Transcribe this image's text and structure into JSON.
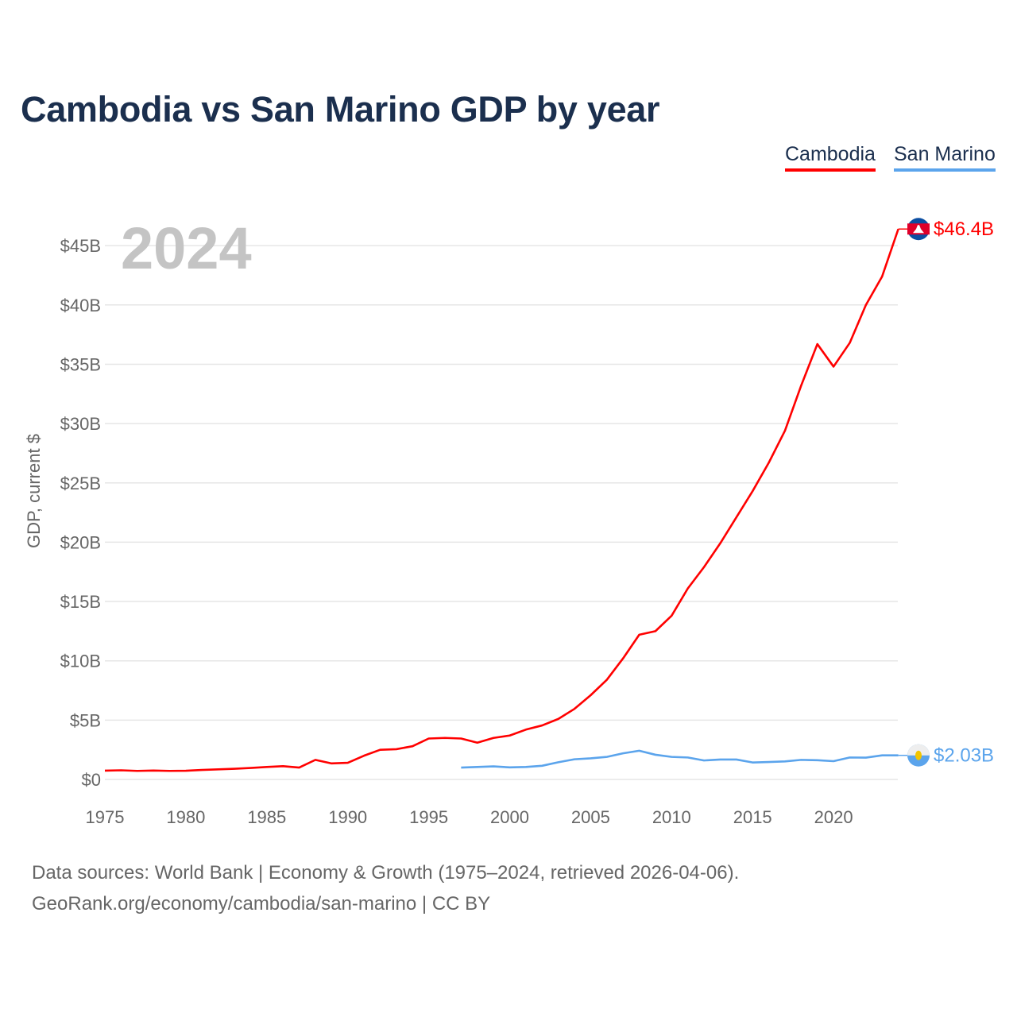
{
  "title": "Cambodia vs San Marino GDP by year",
  "footer": {
    "line1": "Data sources: World Bank | Economy & Growth (1975–2024, retrieved 2026-04-06).",
    "line2": "GeoRank.org/economy/cambodia/san-marino | CC BY"
  },
  "chart_data": {
    "type": "line",
    "title": "Cambodia vs San Marino GDP by year",
    "year_label": "2024",
    "xlabel": "",
    "ylabel": "GDP, current $",
    "xlim": [
      1975,
      2024
    ],
    "ylim": [
      0,
      47
    ],
    "x_ticks": [
      1975,
      1980,
      1985,
      1990,
      1995,
      2000,
      2005,
      2010,
      2015,
      2020
    ],
    "x_tick_labels": [
      "1975",
      "1980",
      "1985",
      "1990",
      "1995",
      "2000",
      "2005",
      "2010",
      "2015",
      "2020"
    ],
    "y_ticks": [
      0,
      5,
      10,
      15,
      20,
      25,
      30,
      35,
      40,
      45
    ],
    "y_tick_labels": [
      "$0",
      "$5B",
      "$10B",
      "$15B",
      "$20B",
      "$25B",
      "$30B",
      "$35B",
      "$40B",
      "$45B"
    ],
    "grid": true,
    "legend_position": "top-right",
    "series": [
      {
        "name": "Cambodia",
        "color": "#ff0000",
        "flag_icon": "cambodia-flag-icon",
        "end_label": "$46.4B",
        "x": [
          1975,
          1976,
          1977,
          1978,
          1979,
          1980,
          1981,
          1982,
          1983,
          1984,
          1985,
          1986,
          1987,
          1988,
          1989,
          1990,
          1991,
          1992,
          1993,
          1994,
          1995,
          1996,
          1997,
          1998,
          1999,
          2000,
          2001,
          2002,
          2003,
          2004,
          2005,
          2006,
          2007,
          2008,
          2009,
          2010,
          2011,
          2012,
          2013,
          2014,
          2015,
          2016,
          2017,
          2018,
          2019,
          2020,
          2021,
          2022,
          2023,
          2024
        ],
        "values": [
          0.74,
          0.77,
          0.72,
          0.75,
          0.72,
          0.73,
          0.8,
          0.85,
          0.9,
          0.97,
          1.05,
          1.12,
          1.0,
          1.65,
          1.35,
          1.4,
          2.0,
          2.5,
          2.55,
          2.8,
          3.45,
          3.5,
          3.45,
          3.1,
          3.5,
          3.7,
          4.2,
          4.55,
          5.1,
          5.95,
          7.1,
          8.4,
          10.2,
          12.2,
          12.5,
          13.8,
          16.1,
          17.9,
          19.9,
          22.1,
          24.3,
          26.7,
          29.4,
          33.2,
          36.7,
          34.8,
          36.8,
          40.0,
          42.4,
          46.4
        ]
      },
      {
        "name": "San Marino",
        "color": "#5ba4ec",
        "flag_icon": "san-marino-flag-icon",
        "end_label": "$2.03B",
        "x": [
          1997,
          1998,
          1999,
          2000,
          2001,
          2002,
          2003,
          2004,
          2005,
          2006,
          2007,
          2008,
          2009,
          2010,
          2011,
          2012,
          2013,
          2014,
          2015,
          2016,
          2017,
          2018,
          2019,
          2020,
          2021,
          2022,
          2023,
          2024
        ],
        "values": [
          1.0,
          1.05,
          1.1,
          1.02,
          1.05,
          1.15,
          1.45,
          1.7,
          1.78,
          1.9,
          2.2,
          2.42,
          2.08,
          1.9,
          1.85,
          1.6,
          1.68,
          1.68,
          1.43,
          1.47,
          1.52,
          1.65,
          1.62,
          1.54,
          1.85,
          1.84,
          2.03,
          2.03
        ]
      }
    ]
  }
}
